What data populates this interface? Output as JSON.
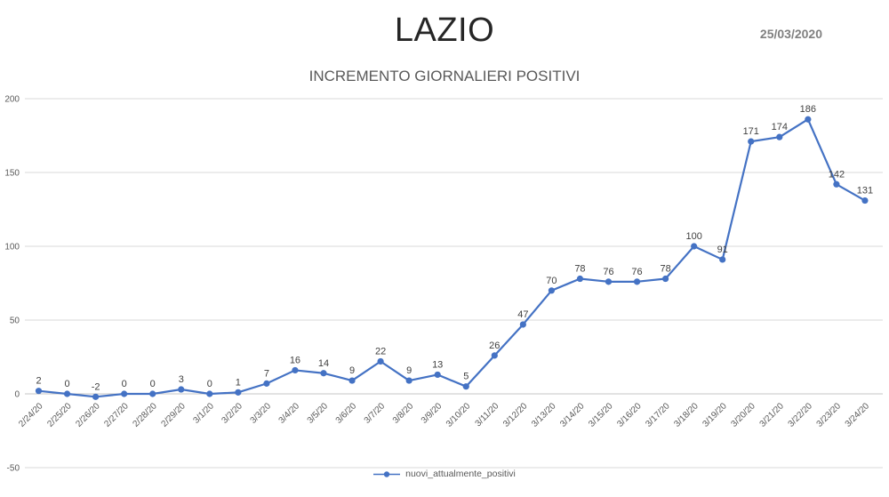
{
  "header": {
    "title": "LAZIO",
    "date": "25/03/2020",
    "subtitle": "INCREMENTO GIORNALIERI POSITIVI"
  },
  "legend": {
    "label": "nuovi_attualmente_positivi"
  },
  "colors": {
    "line": "#4472C4",
    "grid": "#D9D9D9",
    "axis_line": "#C6C6C6",
    "tick_text": "#595959",
    "data_label": "#404040",
    "title_text": "#262626",
    "date_text": "#808080",
    "subtitle_text": "#595959"
  },
  "chart_data": {
    "type": "line",
    "title": "LAZIO",
    "subtitle": "INCREMENTO GIORNALIERI POSITIVI",
    "as_of_date": "25/03/2020",
    "categories": [
      "2/24/20",
      "2/25/20",
      "2/26/20",
      "2/27/20",
      "2/28/20",
      "2/29/20",
      "3/1/20",
      "3/2/20",
      "3/3/20",
      "3/4/20",
      "3/5/20",
      "3/6/20",
      "3/7/20",
      "3/8/20",
      "3/9/20",
      "3/10/20",
      "3/11/20",
      "3/12/20",
      "3/13/20",
      "3/14/20",
      "3/15/20",
      "3/16/20",
      "3/17/20",
      "3/18/20",
      "3/19/20",
      "3/20/20",
      "3/21/20",
      "3/22/20",
      "3/23/20",
      "3/24/20"
    ],
    "series": [
      {
        "name": "nuovi_attualmente_positivi",
        "values": [
          2,
          0,
          -2,
          0,
          0,
          3,
          0,
          1,
          7,
          16,
          14,
          9,
          22,
          9,
          13,
          5,
          26,
          47,
          70,
          78,
          76,
          76,
          78,
          100,
          91,
          171,
          174,
          186,
          142,
          131
        ]
      }
    ],
    "xlabel": "",
    "ylabel": "",
    "ylim": [
      -50,
      200
    ],
    "yticks": [
      200,
      150,
      100,
      50,
      0,
      -50
    ],
    "grid": true,
    "data_labels": true,
    "marker": "circle",
    "legend_position": "bottom"
  }
}
